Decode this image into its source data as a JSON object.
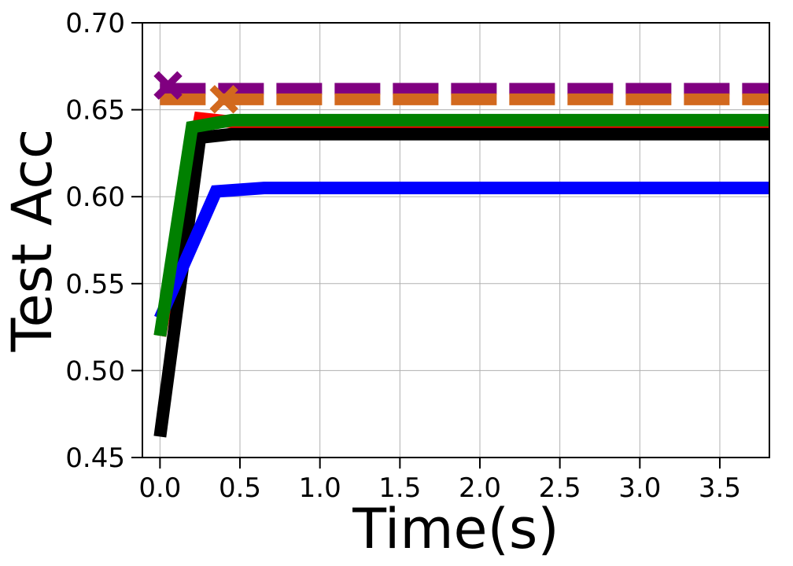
{
  "chart_data": {
    "type": "line",
    "title": "",
    "xlabel": "Time(s)",
    "ylabel": "Test Acc",
    "xlim": [
      -0.11,
      3.81
    ],
    "ylim": [
      0.45,
      0.7
    ],
    "xticks": [
      0.0,
      0.5,
      1.0,
      1.5,
      2.0,
      2.5,
      3.0,
      3.5
    ],
    "xtick_labels": [
      "0.0",
      "0.5",
      "1.0",
      "1.5",
      "2.0",
      "2.5",
      "3.0",
      "3.5"
    ],
    "yticks": [
      0.45,
      0.5,
      0.55,
      0.6,
      0.65,
      0.7
    ],
    "ytick_labels": [
      "0.45",
      "0.50",
      "0.55",
      "0.60",
      "0.65",
      "0.70"
    ],
    "grid": true,
    "legend": "none",
    "series": [
      {
        "color": "#ff0000",
        "style": "solid",
        "x": [
          0.0,
          0.25,
          0.45,
          0.7,
          3.81
        ],
        "y": [
          0.52,
          0.645,
          0.643,
          0.643,
          0.643
        ]
      },
      {
        "color": "#000000",
        "style": "solid",
        "x": [
          0.0,
          0.25,
          0.45,
          3.81
        ],
        "y": [
          0.462,
          0.634,
          0.636,
          0.636
        ]
      },
      {
        "color": "#0000ff",
        "style": "solid",
        "x": [
          0.0,
          0.35,
          0.65,
          3.81
        ],
        "y": [
          0.53,
          0.603,
          0.605,
          0.605
        ]
      },
      {
        "color": "#008000",
        "style": "solid",
        "x": [
          0.0,
          0.2,
          0.45,
          3.81
        ],
        "y": [
          0.52,
          0.64,
          0.644,
          0.644
        ]
      },
      {
        "color": "#800080",
        "style": "dashed",
        "x": [
          0.0,
          3.81
        ],
        "y": [
          0.662,
          0.662
        ],
        "marker": {
          "symbol": "x",
          "x": 0.05,
          "y": 0.664
        }
      },
      {
        "color": "#d2691e",
        "style": "dashed",
        "x": [
          0.0,
          3.81
        ],
        "y": [
          0.656,
          0.656
        ],
        "marker": {
          "symbol": "x",
          "x": 0.4,
          "y": 0.656
        }
      }
    ]
  }
}
